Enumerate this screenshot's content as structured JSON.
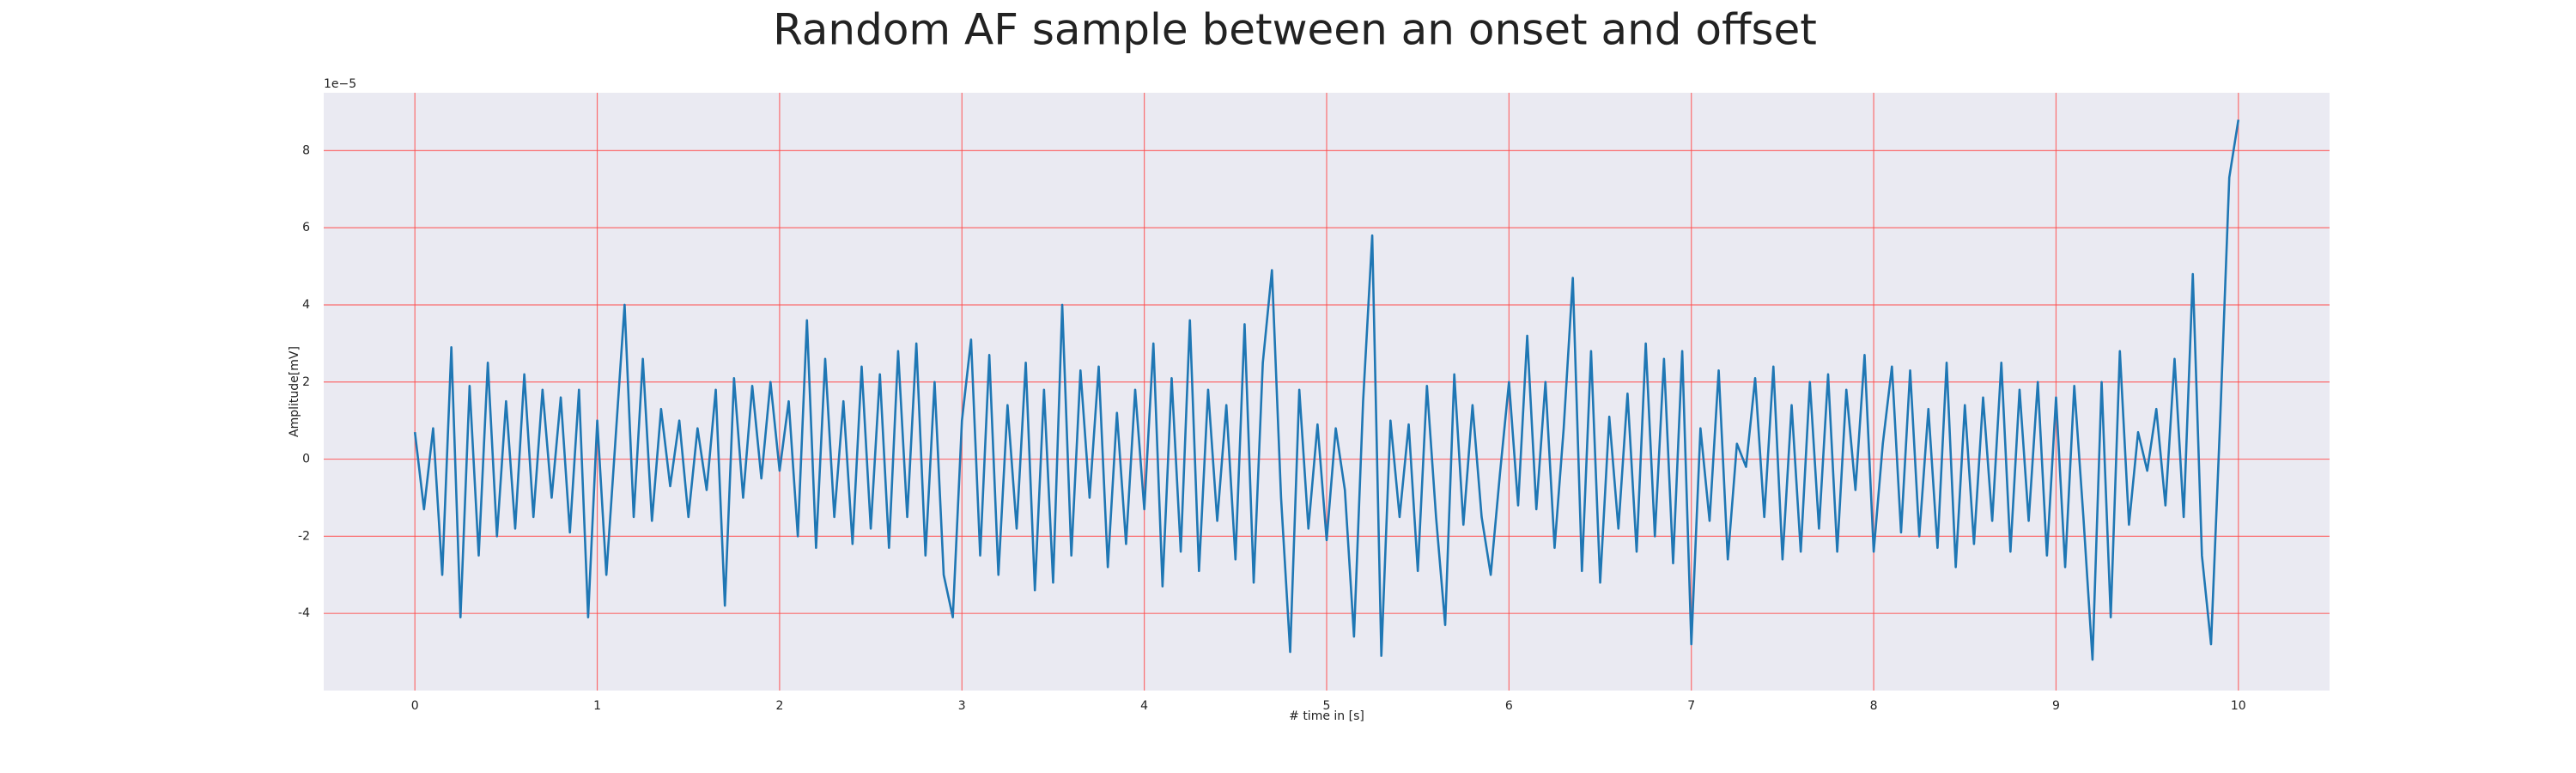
{
  "chart_data": {
    "type": "line",
    "title": "Random AF sample between an onset and offset",
    "xlabel": "# time in [s]",
    "ylabel": "Amplitude[mV]",
    "y_offset_label": "1e−5",
    "x": [
      0,
      0.05,
      0.1,
      0.15,
      0.2,
      0.25,
      0.3,
      0.35,
      0.4,
      0.45,
      0.5,
      0.55,
      0.6,
      0.65,
      0.7,
      0.75,
      0.8,
      0.85,
      0.9,
      0.95,
      1,
      1.05,
      1.1,
      1.15,
      1.2,
      1.25,
      1.3,
      1.35,
      1.4,
      1.45,
      1.5,
      1.55,
      1.6,
      1.65,
      1.7,
      1.75,
      1.8,
      1.85,
      1.9,
      1.95,
      2,
      2.05,
      2.1,
      2.15,
      2.2,
      2.25,
      2.3,
      2.35,
      2.4,
      2.45,
      2.5,
      2.55,
      2.6,
      2.65,
      2.7,
      2.75,
      2.8,
      2.85,
      2.9,
      2.95,
      3,
      3.05,
      3.1,
      3.15,
      3.2,
      3.25,
      3.3,
      3.35,
      3.4,
      3.45,
      3.5,
      3.55,
      3.6,
      3.65,
      3.7,
      3.75,
      3.8,
      3.85,
      3.9,
      3.95,
      4,
      4.05,
      4.1,
      4.15,
      4.2,
      4.25,
      4.3,
      4.35,
      4.4,
      4.45,
      4.5,
      4.55,
      4.6,
      4.65,
      4.7,
      4.75,
      4.8,
      4.85,
      4.9,
      4.95,
      5,
      5.05,
      5.1,
      5.15,
      5.2,
      5.25,
      5.3,
      5.35,
      5.4,
      5.45,
      5.5,
      5.55,
      5.6,
      5.65,
      5.7,
      5.75,
      5.8,
      5.85,
      5.9,
      5.95,
      6,
      6.05,
      6.1,
      6.15,
      6.2,
      6.25,
      6.3,
      6.35,
      6.4,
      6.45,
      6.5,
      6.55,
      6.6,
      6.65,
      6.7,
      6.75,
      6.8,
      6.85,
      6.9,
      6.95,
      7,
      7.05,
      7.1,
      7.15,
      7.2,
      7.25,
      7.3,
      7.35,
      7.4,
      7.45,
      7.5,
      7.55,
      7.6,
      7.65,
      7.7,
      7.75,
      7.8,
      7.85,
      7.9,
      7.95,
      8,
      8.05,
      8.1,
      8.15,
      8.2,
      8.25,
      8.3,
      8.35,
      8.4,
      8.45,
      8.5,
      8.55,
      8.6,
      8.65,
      8.7,
      8.75,
      8.8,
      8.85,
      8.9,
      8.95,
      9,
      9.05,
      9.1,
      9.15,
      9.2,
      9.25,
      9.3,
      9.35,
      9.4,
      9.45,
      9.5,
      9.55,
      9.6,
      9.65,
      9.7,
      9.75,
      9.8,
      9.85,
      9.9,
      9.95,
      10
    ],
    "series": [
      {
        "color": "#1f77b4",
        "values": [
          0.7,
          -1.3,
          0.8,
          -3.0,
          2.9,
          -4.1,
          1.9,
          -2.5,
          2.5,
          -2.0,
          1.5,
          -1.8,
          2.2,
          -1.5,
          1.8,
          -1.0,
          1.6,
          -1.9,
          1.8,
          -4.1,
          1.0,
          -3.0,
          0.5,
          4.0,
          -1.5,
          2.6,
          -1.6,
          1.3,
          -0.7,
          1.0,
          -1.5,
          0.8,
          -0.8,
          1.8,
          -3.8,
          2.1,
          -1.0,
          1.9,
          -0.5,
          2.0,
          -0.3,
          1.5,
          -2.0,
          3.6,
          -2.3,
          2.6,
          -1.5,
          1.5,
          -2.2,
          2.4,
          -1.8,
          2.2,
          -2.3,
          2.8,
          -1.5,
          3.0,
          -2.5,
          2.0,
          -3.0,
          -4.1,
          1.0,
          3.1,
          -2.5,
          2.7,
          -3.0,
          1.4,
          -1.8,
          2.5,
          -3.4,
          1.8,
          -3.2,
          4.0,
          -2.5,
          2.3,
          -1.0,
          2.4,
          -2.8,
          1.2,
          -2.2,
          1.8,
          -1.3,
          3.0,
          -3.3,
          2.1,
          -2.4,
          3.6,
          -2.9,
          1.8,
          -1.6,
          1.4,
          -2.6,
          3.5,
          -3.2,
          2.5,
          4.9,
          -1.0,
          -5.0,
          1.8,
          -1.8,
          0.9,
          -2.1,
          0.8,
          -0.8,
          -4.6,
          1.5,
          5.8,
          -5.1,
          1.0,
          -1.5,
          0.9,
          -2.9,
          1.9,
          -1.5,
          -4.3,
          2.2,
          -1.7,
          1.4,
          -1.5,
          -3.0,
          -0.4,
          2.0,
          -1.2,
          3.2,
          -1.3,
          2.0,
          -2.3,
          0.8,
          4.7,
          -2.9,
          2.8,
          -3.2,
          1.1,
          -1.8,
          1.7,
          -2.4,
          3.0,
          -2.0,
          2.6,
          -2.7,
          2.8,
          -4.8,
          0.8,
          -1.6,
          2.3,
          -2.6,
          0.4,
          -0.2,
          2.1,
          -1.5,
          2.4,
          -2.6,
          1.4,
          -2.4,
          2.0,
          -1.8,
          2.2,
          -2.4,
          1.8,
          -0.8,
          2.7,
          -2.4,
          0.4,
          2.4,
          -1.9,
          2.3,
          -2.0,
          1.3,
          -2.3,
          2.5,
          -2.8,
          1.4,
          -2.2,
          1.6,
          -1.6,
          2.5,
          -2.4,
          1.8,
          -1.6,
          2.0,
          -2.5,
          1.6,
          -2.8,
          1.9,
          -1.5,
          -5.2,
          2.0,
          -4.1,
          2.8,
          -1.7,
          0.7,
          -0.3,
          1.3,
          -1.2,
          2.6,
          -1.5,
          4.8,
          -2.5,
          -4.8,
          1.0,
          7.3,
          8.8
        ]
      }
    ],
    "xlim": [
      -0.5,
      10.5
    ],
    "ylim": [
      -6.0,
      9.5
    ],
    "xticks": [
      0,
      1,
      2,
      3,
      4,
      5,
      6,
      7,
      8,
      9,
      10
    ],
    "yticks": [
      -4,
      -2,
      0,
      2,
      4,
      6,
      8
    ],
    "grid": true,
    "grid_color": "#ff4c4c",
    "background": "#eaeaf2"
  }
}
